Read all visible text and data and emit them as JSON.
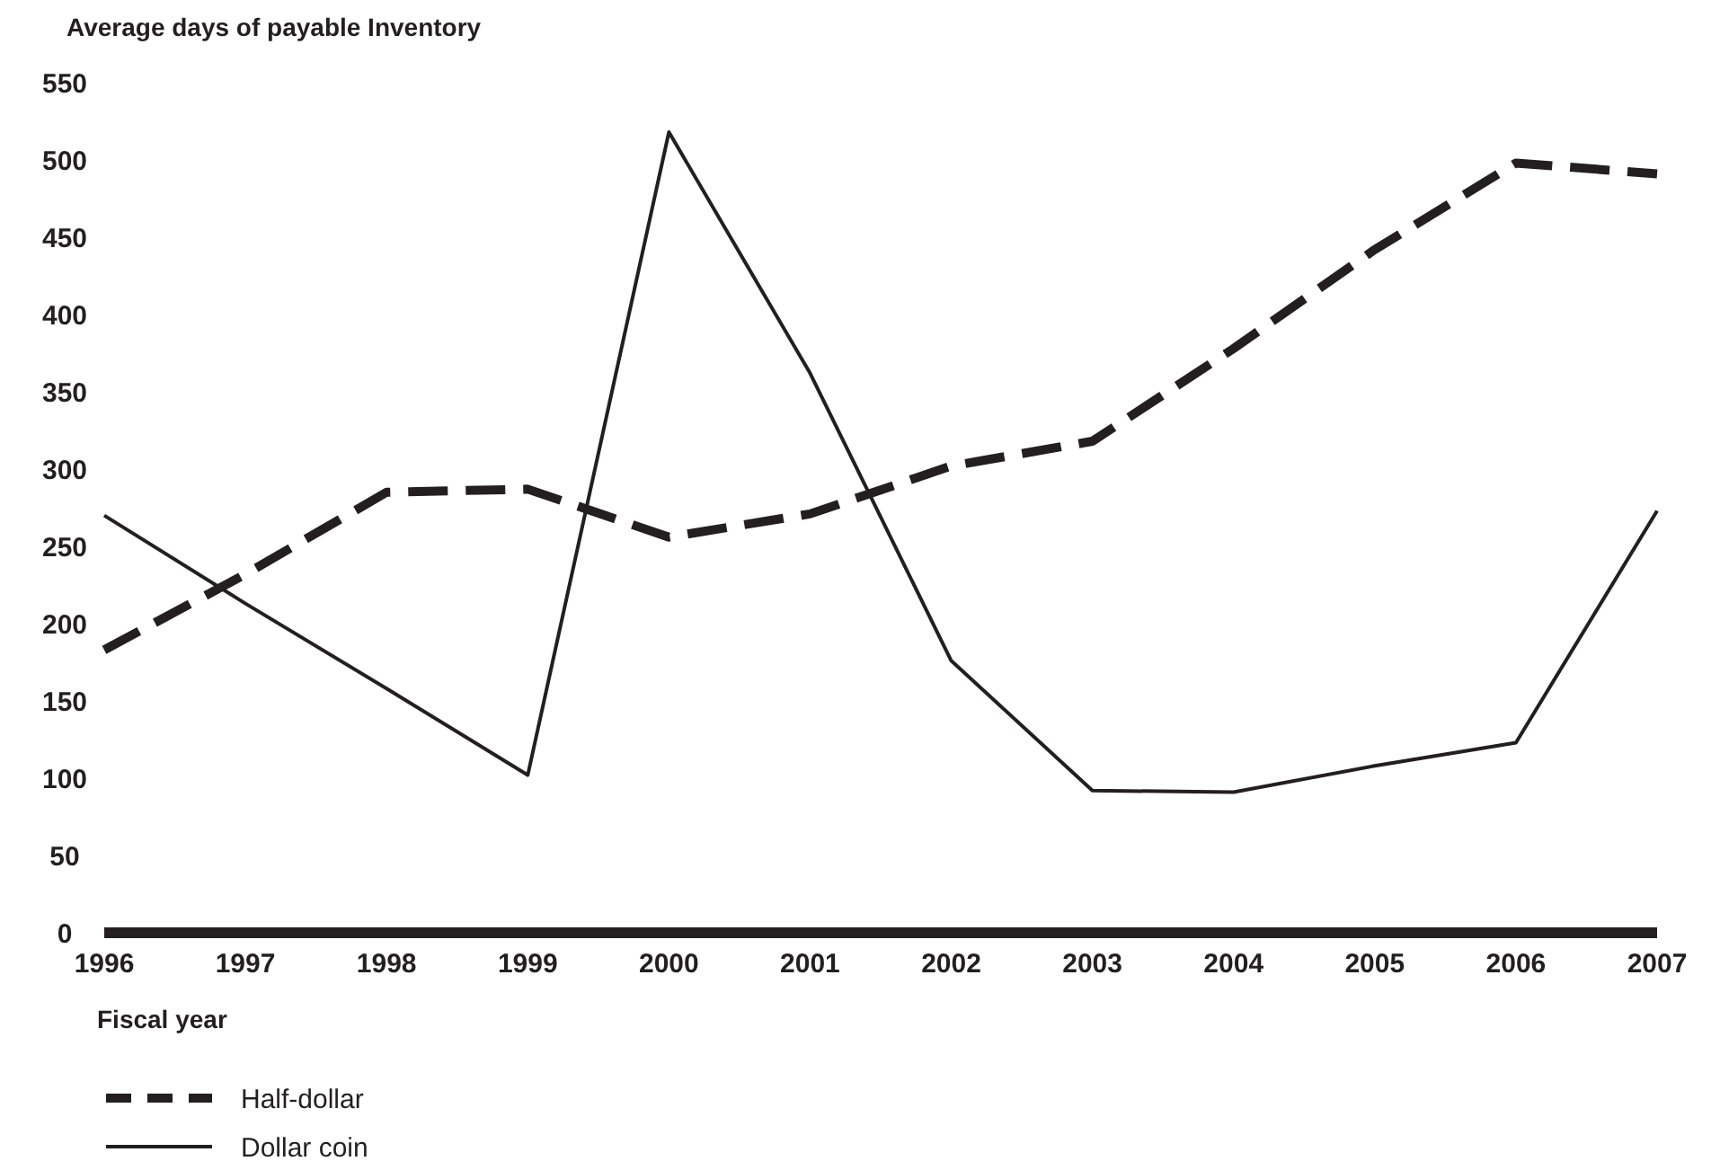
{
  "chart_data": {
    "type": "line",
    "ylabel": "Average days of payable Inventory",
    "xlabel": "Fiscal year",
    "x": [
      1996,
      1997,
      1998,
      1999,
      2000,
      2001,
      2002,
      2003,
      2004,
      2005,
      2006,
      2007
    ],
    "xlim": [
      1996,
      2007
    ],
    "xticks": [
      1996,
      1997,
      1998,
      1999,
      2000,
      2001,
      2002,
      2003,
      2004,
      2005,
      2006,
      2007
    ],
    "ylim": [
      0,
      550
    ],
    "yticks": [
      0,
      50,
      100,
      150,
      200,
      250,
      300,
      350,
      400,
      450,
      500,
      550
    ],
    "grid": false,
    "legend": "bottom left",
    "series": [
      {
        "name": "Half-dollar",
        "color": "#231f20",
        "line_style": "dashed",
        "values": [
          183,
          232,
          285,
          287,
          256,
          271,
          302,
          318,
          378,
          442,
          498,
          491
        ]
      },
      {
        "name": "Dollar coin",
        "color": "#231f20",
        "line_style": "solid",
        "values": [
          270,
          213,
          158,
          102,
          518,
          362,
          176,
          92,
          91,
          108,
          123,
          273
        ]
      }
    ]
  }
}
